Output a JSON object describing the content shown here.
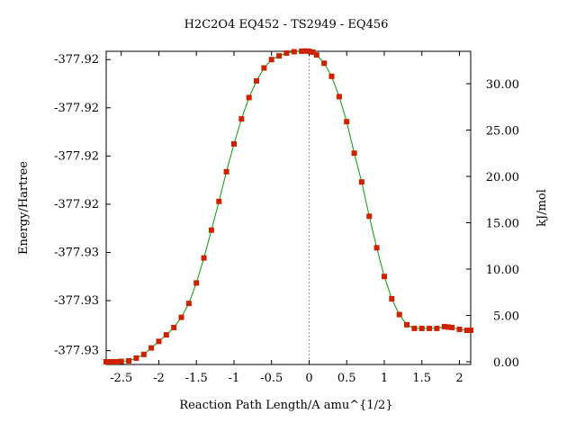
{
  "chart_data": {
    "type": "line",
    "title": "H2C2O4    EQ452 - TS2949 - EQ456",
    "xlabel": "Reaction Path Length/A amu^{1/2}",
    "ylabel": "Energy/Hartree",
    "y2label": "kJ/mol",
    "xlim": [
      -2.7,
      2.15
    ],
    "x_ticks": [
      -2.5,
      -2,
      -1.5,
      -1,
      -0.5,
      0,
      0.5,
      1,
      1.5,
      2
    ],
    "x_tick_labels": [
      "-2.5",
      "-2",
      "-1.5",
      "-1",
      "-0.5",
      "0",
      "0.5",
      "1",
      "1.5",
      "2"
    ],
    "y2lim": [
      0,
      33
    ],
    "y2_ticks": [
      0,
      5,
      10,
      15,
      20,
      25,
      30
    ],
    "y2_tick_labels": [
      "0.00",
      "5.00",
      "10.00",
      "15.00",
      "20.00",
      "25.00",
      "30.00"
    ],
    "y_tick_labels": [
      "-377.92",
      "-377.92",
      "-377.92",
      "-377.92",
      "-377.93",
      "-377.93",
      "-377.93"
    ],
    "y_tick_positions_kj": [
      32.6,
      27.4,
      22.2,
      17.0,
      11.8,
      6.6,
      1.2
    ],
    "ts_x": 0,
    "grid": false,
    "colors": {
      "line": "#00a000",
      "marker": "#cc2200",
      "ts_line": "#999999"
    },
    "series": [
      {
        "x": [
          -2.7,
          -2.65,
          -2.6,
          -2.55,
          -2.5,
          -2.4,
          -2.3,
          -2.2,
          -2.1,
          -2.0,
          -1.9,
          -1.8,
          -1.7,
          -1.6,
          -1.5,
          -1.4,
          -1.3,
          -1.2,
          -1.1,
          -1.0,
          -0.9,
          -0.8,
          -0.7,
          -0.6,
          -0.5,
          -0.4,
          -0.3,
          -0.2,
          -0.1,
          -0.05,
          0,
          0.05,
          0.1,
          0.2,
          0.3,
          0.4,
          0.5,
          0.6,
          0.7,
          0.8,
          0.9,
          1.0,
          1.1,
          1.2,
          1.3,
          1.4,
          1.5,
          1.6,
          1.7,
          1.8,
          1.85,
          1.9,
          2.0,
          2.1,
          2.15
        ],
        "y": [
          0.0,
          0.0,
          0.0,
          0.0,
          0.05,
          0.1,
          0.4,
          0.8,
          1.5,
          2.2,
          2.9,
          3.7,
          4.8,
          6.3,
          8.5,
          11.2,
          14.2,
          17.3,
          20.5,
          23.5,
          26.2,
          28.5,
          30.3,
          31.7,
          32.6,
          33.0,
          33.3,
          33.45,
          33.5,
          33.52,
          33.5,
          33.4,
          33.1,
          32.2,
          30.8,
          28.6,
          25.9,
          22.5,
          19.4,
          15.7,
          12.3,
          9.2,
          6.8,
          5.1,
          4.0,
          3.6,
          3.6,
          3.6,
          3.6,
          3.8,
          3.75,
          3.7,
          3.5,
          3.4,
          3.4
        ]
      }
    ]
  }
}
